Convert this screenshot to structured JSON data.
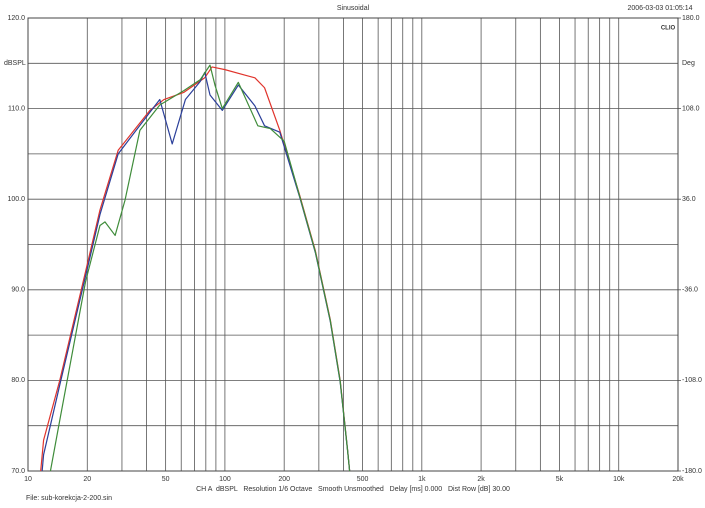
{
  "chart_data": {
    "type": "line",
    "title": "Sinusoidal",
    "timestamp": "2006-03-03 01:05:14",
    "logo": "CLIO",
    "y_label": "dBSPL",
    "y2_label": "Deg",
    "info": "CH A  dBSPL   Resolution 1/6 Octave   Smooth Unsmoothed   Delay [ms] 0.000   Dist Row [dB] 30.00",
    "file": "File: sub-korekcja-2-200.sin",
    "x_log": true,
    "grid": true,
    "xlim": [
      10,
      20000
    ],
    "xticks": [
      10,
      20,
      50,
      100,
      200,
      500,
      {
        "value": 1000,
        "label": "1k"
      },
      {
        "value": 2000,
        "label": "2k"
      },
      {
        "value": 5000,
        "label": "5k"
      },
      {
        "value": 10000,
        "label": "10k"
      },
      {
        "value": 20000,
        "label": "20k"
      }
    ],
    "x_minor_grid": [
      30,
      40,
      60,
      70,
      80,
      90,
      300,
      400,
      600,
      700,
      800,
      900,
      3000,
      4000,
      6000,
      7000,
      8000,
      9000
    ],
    "ylim": [
      70,
      120
    ],
    "yticks": [
      {
        "value": 70,
        "label": "70.0"
      },
      {
        "value": 80,
        "label": "80.0"
      },
      {
        "value": 90,
        "label": "90.0"
      },
      {
        "value": 100,
        "label": "100.0"
      },
      {
        "value": 110,
        "label": "110.0"
      },
      {
        "value": 120,
        "label": "120.0"
      }
    ],
    "y_minor_grid": [
      75,
      85,
      95,
      105,
      115
    ],
    "y2lim": [
      -180,
      180
    ],
    "y2ticks": [
      {
        "value": -180,
        "label": "-180.0"
      },
      {
        "value": -108,
        "label": "-108.0"
      },
      {
        "value": -36,
        "label": "-36.0"
      },
      {
        "value": 36,
        "label": "36.0"
      },
      {
        "value": 108,
        "label": "108.0"
      },
      {
        "value": 180,
        "label": "180.0"
      }
    ],
    "series": [
      {
        "color": "#e0342c",
        "x": [
          11.6,
          12,
          14.5,
          19.6,
          23.2,
          28.7,
          41.6,
          49,
          62,
          79,
          86,
          100,
          126,
          142,
          159,
          190,
          240,
          288,
          343,
          385,
          420,
          430
        ],
        "values": [
          70,
          73.4,
          80,
          92,
          98.8,
          105.4,
          109.8,
          111,
          111.8,
          113.4,
          114.6,
          114.3,
          113.7,
          113.4,
          112.3,
          107.6,
          100.4,
          94.3,
          86.7,
          80,
          72.3,
          70
        ]
      },
      {
        "color": "#2b3f9a",
        "x": [
          11.8,
          12,
          14.5,
          19.6,
          23.2,
          28.7,
          41.6,
          46.7,
          54,
          63,
          75,
          79,
          84,
          97,
          117,
          142,
          159,
          190,
          240,
          288,
          343,
          385,
          420,
          430
        ],
        "values": [
          70,
          71.8,
          79.5,
          91.5,
          98.3,
          105,
          109.6,
          111,
          106.1,
          111,
          113,
          114,
          111.5,
          109.8,
          112.6,
          110.3,
          108.1,
          107.4,
          100.2,
          94.1,
          86.5,
          79.8,
          72.2,
          70
        ]
      },
      {
        "color": "#3f8c3a",
        "x": [
          13,
          14.5,
          19.6,
          23.2,
          24.6,
          27.7,
          31.1,
          37,
          46.7,
          62,
          75,
          84,
          89,
          97,
          117,
          147,
          170,
          200,
          240,
          288,
          343,
          385,
          420,
          430
        ],
        "values": [
          70,
          75.6,
          90.9,
          97.1,
          97.5,
          96,
          99.9,
          107.6,
          110.4,
          112,
          113.2,
          114.8,
          112.6,
          110,
          112.9,
          108.1,
          107.8,
          106.4,
          100.3,
          94.2,
          86.6,
          79.9,
          72.2,
          70
        ]
      }
    ]
  }
}
